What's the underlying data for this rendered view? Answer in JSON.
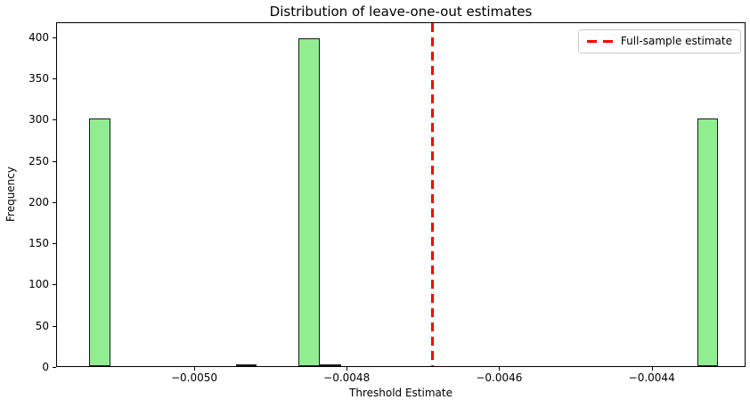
{
  "figure": {
    "title": "Distribution of leave-one-out estimates",
    "xlabel": "Threshold Estimate",
    "ylabel": "Frequency",
    "legend": {
      "label": "Full-sample estimate"
    },
    "colors": {
      "bar_fill": "#90ee90",
      "bar_edge": "#1a1a1a",
      "vline": "#ff0000",
      "background": "#ffffff",
      "spine": "#000000",
      "legend_border": "#cccccc"
    }
  },
  "chart_data": {
    "type": "bar",
    "subtype": "histogram",
    "title": "Distribution of leave-one-out estimates",
    "xlabel": "Threshold Estimate",
    "ylabel": "Frequency",
    "xlim": [
      -0.005181,
      -0.004277
    ],
    "ylim": [
      0,
      418
    ],
    "grid": false,
    "legend_position": "upper right",
    "legend_entries": [
      "Full-sample estimate"
    ],
    "x_ticks": [
      -0.005,
      -0.0048,
      -0.0046,
      -0.0044
    ],
    "x_tick_labels": [
      "−0.0050",
      "−0.0048",
      "−0.0046",
      "−0.0044"
    ],
    "y_ticks": [
      0,
      50,
      100,
      150,
      200,
      250,
      300,
      350,
      400
    ],
    "bars": [
      {
        "x0": -0.005139,
        "x1": -0.0051115,
        "count": 300
      },
      {
        "x0": -0.0049465,
        "x1": -0.004919,
        "count": 1
      },
      {
        "x0": -0.004864,
        "x1": -0.0048365,
        "count": 398
      },
      {
        "x0": -0.0048365,
        "x1": -0.004809,
        "count": 1
      },
      {
        "x0": -0.0043415,
        "x1": -0.004314,
        "count": 300
      }
    ],
    "vline": {
      "x": -0.004689,
      "label": "Full-sample estimate",
      "style": "dashed",
      "color": "#ff0000",
      "linewidth": 3
    }
  }
}
